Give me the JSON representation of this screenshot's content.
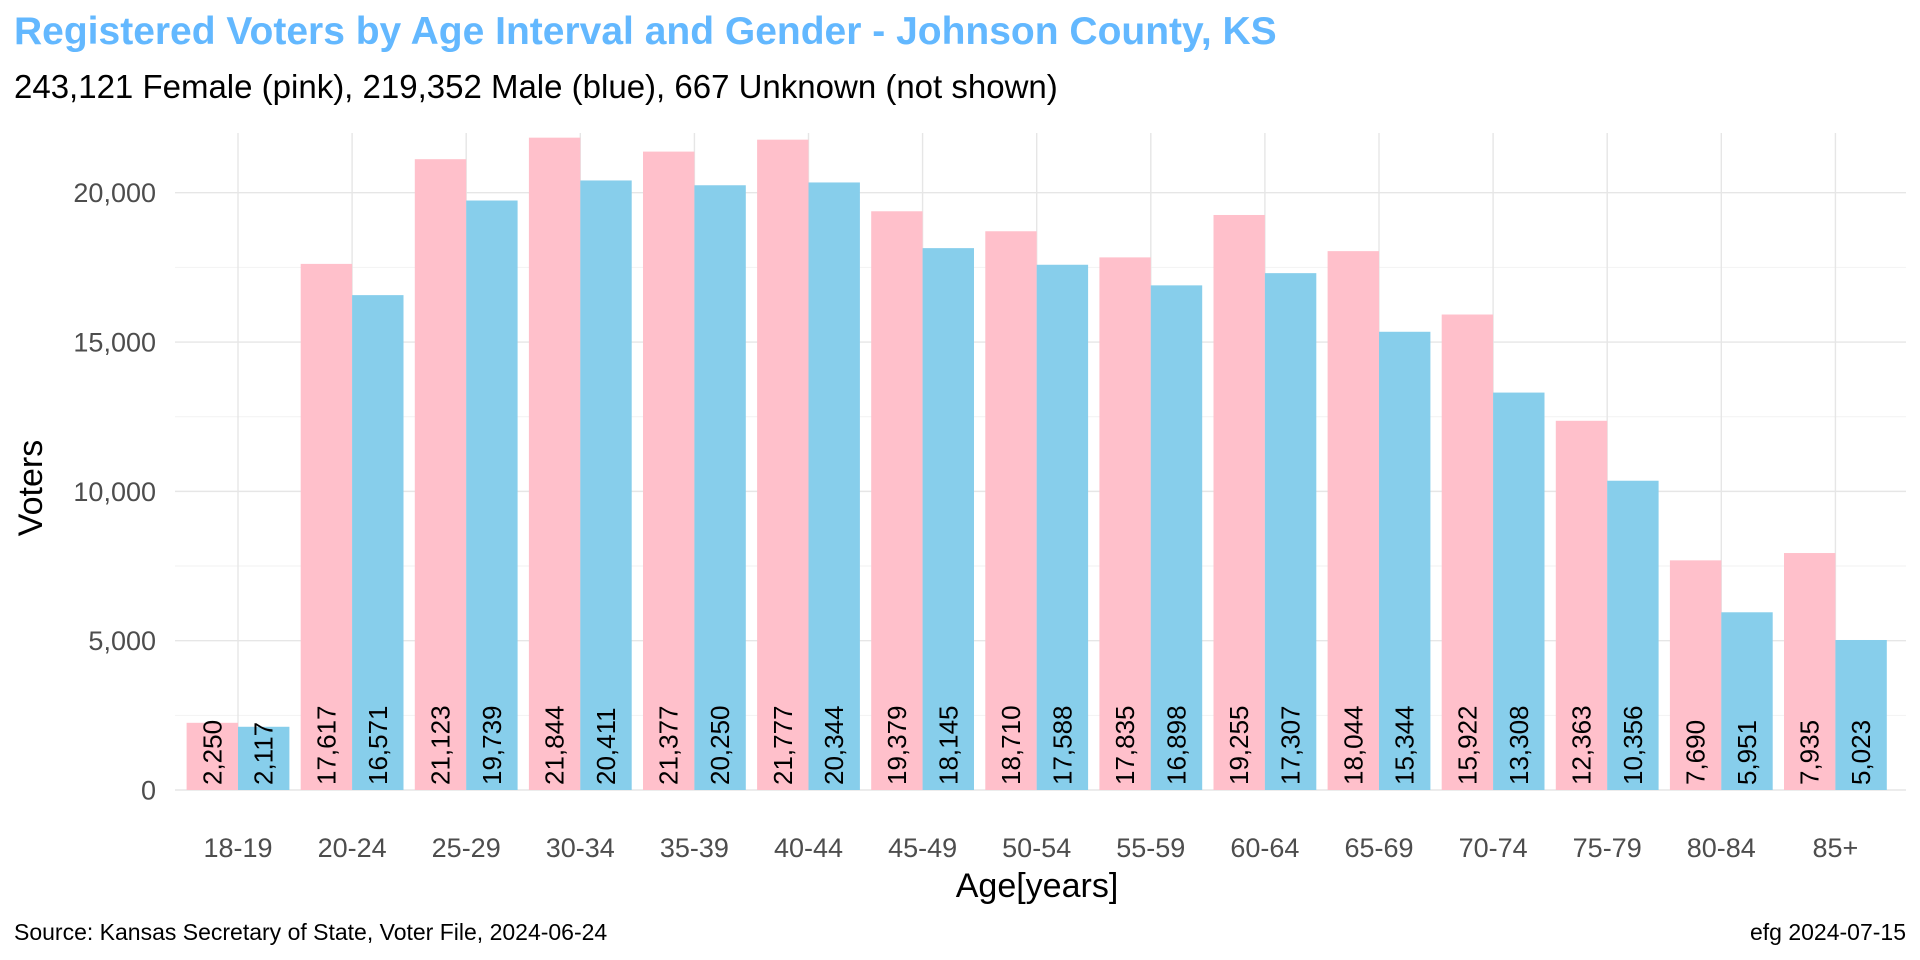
{
  "chart_data": {
    "type": "bar",
    "title": "Registered Voters by Age Interval and Gender - Johnson County, KS",
    "subtitle": "243,121 Female (pink),  219,352 Male (blue),  667 Unknown (not shown)",
    "xlabel": "Age[years]",
    "ylabel": "Voters",
    "ylim": [
      0,
      22000
    ],
    "yticks": [
      0,
      5000,
      10000,
      15000,
      20000
    ],
    "ytick_labels": [
      "0",
      "5,000",
      "10,000",
      "15,000",
      "20,000"
    ],
    "grid": true,
    "categories": [
      "18-19",
      "20-24",
      "25-29",
      "30-34",
      "35-39",
      "40-44",
      "45-49",
      "50-54",
      "55-59",
      "60-64",
      "65-69",
      "70-74",
      "75-79",
      "80-84",
      "85+"
    ],
    "series": [
      {
        "color": "#FFC0CB",
        "values": [
          2250,
          17617,
          21123,
          21844,
          21377,
          21777,
          19379,
          18710,
          17835,
          19255,
          18044,
          15922,
          12363,
          7690,
          7935
        ],
        "labels": [
          "2,250",
          "17,617",
          "21,123",
          "21,844",
          "21,377",
          "21,777",
          "19,379",
          "18,710",
          "17,835",
          "19,255",
          "18,044",
          "15,922",
          "12,363",
          "7,690",
          "7,935"
        ]
      },
      {
        "color": "#87CEEB",
        "values": [
          2117,
          16571,
          19739,
          20411,
          20250,
          20344,
          18145,
          17588,
          16898,
          17307,
          15344,
          13308,
          10356,
          5951,
          5023
        ],
        "labels": [
          "2,117",
          "16,571",
          "19,739",
          "20,411",
          "20,250",
          "20,344",
          "18,145",
          "17,588",
          "16,898",
          "17,307",
          "15,344",
          "13,308",
          "10,356",
          "5,951",
          "5,023"
        ]
      }
    ],
    "caption_left": "Source: Kansas Secretary of State, Voter File, 2024-06-24",
    "caption_right": "efg 2024-07-15"
  }
}
